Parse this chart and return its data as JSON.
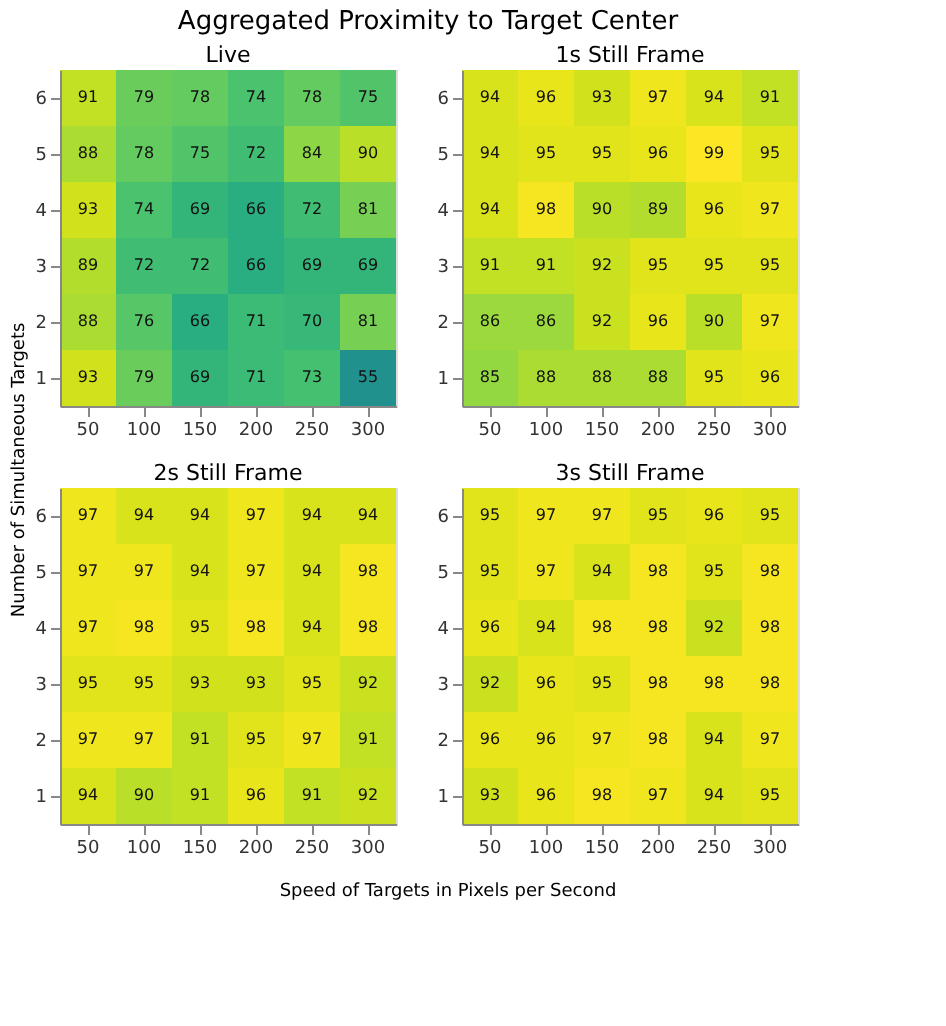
{
  "chart_data": [
    {
      "type": "heatmap",
      "title": "Live",
      "annotations": [
        "Aggregated Proximity to Target Center",
        "Speed of Targets in Pixels per Second",
        "Number of Simultaneous Targets"
      ],
      "categories": [
        "50",
        "100",
        "150",
        "200",
        "250",
        "300"
      ],
      "y_categories": [
        "6",
        "5",
        "4",
        "3",
        "2",
        "1"
      ],
      "data_labels": true,
      "grid": false,
      "cells": [
        [
          91,
          79,
          78,
          74,
          78,
          75
        ],
        [
          88,
          78,
          75,
          72,
          84,
          90
        ],
        [
          93,
          74,
          69,
          66,
          72,
          81
        ],
        [
          89,
          72,
          72,
          66,
          69,
          69
        ],
        [
          88,
          76,
          66,
          71,
          70,
          81
        ],
        [
          93,
          79,
          69,
          71,
          73,
          55
        ]
      ]
    },
    {
      "type": "heatmap",
      "title": "1s Still Frame",
      "categories": [
        "50",
        "100",
        "150",
        "200",
        "250",
        "300"
      ],
      "y_categories": [
        "6",
        "5",
        "4",
        "3",
        "2",
        "1"
      ],
      "data_labels": true,
      "grid": false,
      "cells": [
        [
          94,
          96,
          93,
          97,
          94,
          91
        ],
        [
          94,
          95,
          95,
          96,
          99,
          95
        ],
        [
          94,
          98,
          90,
          89,
          96,
          97
        ],
        [
          91,
          91,
          92,
          95,
          95,
          95
        ],
        [
          86,
          86,
          92,
          96,
          90,
          97
        ],
        [
          85,
          88,
          88,
          88,
          95,
          96
        ]
      ]
    },
    {
      "type": "heatmap",
      "title": "2s Still Frame",
      "categories": [
        "50",
        "100",
        "150",
        "200",
        "250",
        "300"
      ],
      "y_categories": [
        "6",
        "5",
        "4",
        "3",
        "2",
        "1"
      ],
      "data_labels": true,
      "grid": false,
      "cells": [
        [
          97,
          94,
          94,
          97,
          94,
          94
        ],
        [
          97,
          97,
          94,
          97,
          94,
          98
        ],
        [
          97,
          98,
          95,
          98,
          94,
          98
        ],
        [
          95,
          95,
          93,
          93,
          95,
          92
        ],
        [
          97,
          97,
          91,
          95,
          97,
          91
        ],
        [
          94,
          90,
          91,
          96,
          91,
          92
        ]
      ]
    },
    {
      "type": "heatmap",
      "title": "3s Still Frame",
      "categories": [
        "50",
        "100",
        "150",
        "200",
        "250",
        "300"
      ],
      "y_categories": [
        "6",
        "5",
        "4",
        "3",
        "2",
        "1"
      ],
      "data_labels": true,
      "grid": false,
      "cells": [
        [
          95,
          97,
          97,
          95,
          96,
          95
        ],
        [
          95,
          97,
          94,
          98,
          95,
          98
        ],
        [
          96,
          94,
          98,
          98,
          92,
          98
        ],
        [
          92,
          96,
          95,
          98,
          98,
          98
        ],
        [
          96,
          96,
          97,
          98,
          94,
          97
        ],
        [
          93,
          96,
          98,
          97,
          94,
          95
        ]
      ]
    }
  ]
}
